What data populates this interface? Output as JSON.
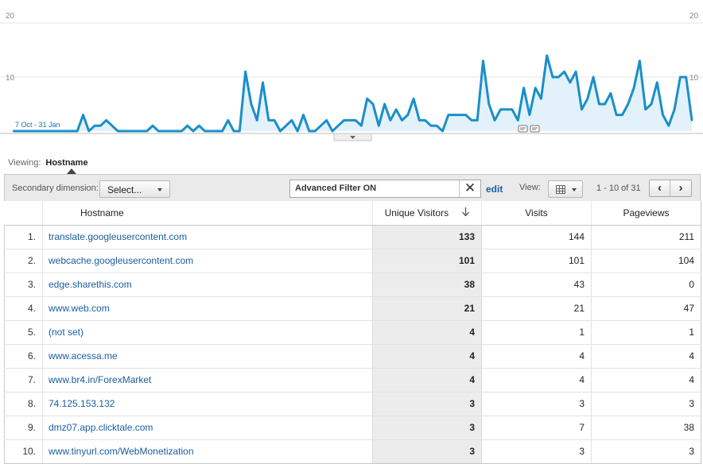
{
  "chart_data": {
    "type": "area",
    "yticks": [
      "20",
      "10"
    ],
    "yticks_right": [
      "20",
      "10"
    ],
    "ylim": [
      0,
      20
    ],
    "date_range_label": "7 Oct - 31 Jan",
    "grid": true,
    "colors": {
      "line": "#1a8fc8",
      "fill": "#e3f1fb",
      "grid": "#e6e6e6"
    },
    "values": [
      0,
      0,
      0,
      0,
      0,
      0,
      0,
      0,
      0,
      0,
      0,
      0,
      3,
      0,
      1,
      1,
      2,
      1,
      0,
      0,
      0,
      0,
      0,
      0,
      1,
      0,
      0,
      0,
      0,
      0,
      1,
      0,
      1,
      0,
      0,
      0,
      0,
      2,
      0,
      0,
      11,
      5,
      2,
      9,
      2,
      2,
      0,
      1,
      2,
      0,
      3,
      0,
      0,
      1,
      2,
      0,
      1,
      2,
      2,
      2,
      1,
      6,
      5,
      1,
      5,
      2,
      4,
      2,
      3,
      6,
      2,
      2,
      1,
      1,
      0,
      3,
      3,
      3,
      3,
      2,
      2,
      13,
      5,
      2,
      4,
      4,
      4,
      2,
      8,
      3,
      8,
      6,
      14,
      10,
      10,
      11,
      9,
      11,
      4,
      6,
      10,
      5,
      5,
      7,
      3,
      3,
      5,
      8,
      13,
      4,
      5,
      9,
      3,
      1,
      4,
      10,
      10,
      2
    ]
  },
  "chart_ui": {
    "annotation_icons": [
      "annotation-icon",
      "annotation-icon"
    ],
    "expand_handle": "chevron-down-icon"
  },
  "viewing": {
    "label": "Viewing:",
    "dimension": "Hostname"
  },
  "toolbar": {
    "secondary_label": "Secondary dimension:",
    "select_label": "Select...",
    "filter_text": "Advanced Filter ON",
    "filter_close": "✕",
    "edit_label": "edit",
    "view_label": "View:",
    "view_icon": "grid-icon",
    "pager_text": "1 - 10 of 31",
    "prev_icon": "‹",
    "next_icon": "›"
  },
  "table": {
    "headers": {
      "hostname": "Hostname",
      "unique_visitors": "Unique Visitors",
      "visits": "Visits",
      "pageviews": "Pageviews"
    },
    "sort_icon": "sort-down-arrow-icon",
    "rows": [
      {
        "idx": "1.",
        "host": "translate.googleusercontent.com",
        "uv": "133",
        "visits": "144",
        "pv": "211"
      },
      {
        "idx": "2.",
        "host": "webcache.googleusercontent.com",
        "uv": "101",
        "visits": "101",
        "pv": "104"
      },
      {
        "idx": "3.",
        "host": "edge.sharethis.com",
        "uv": "38",
        "visits": "43",
        "pv": "0"
      },
      {
        "idx": "4.",
        "host": "www.web.com",
        "uv": "21",
        "visits": "21",
        "pv": "47"
      },
      {
        "idx": "5.",
        "host": "(not set)",
        "uv": "4",
        "visits": "1",
        "pv": "1"
      },
      {
        "idx": "6.",
        "host": "www.acessa.me",
        "uv": "4",
        "visits": "4",
        "pv": "4"
      },
      {
        "idx": "7.",
        "host": "www.br4.in/ForexMarket",
        "uv": "4",
        "visits": "4",
        "pv": "4"
      },
      {
        "idx": "8.",
        "host": "74.125.153.132",
        "uv": "3",
        "visits": "3",
        "pv": "3"
      },
      {
        "idx": "9.",
        "host": "dmz07.app.clicktale.com",
        "uv": "3",
        "visits": "7",
        "pv": "38"
      },
      {
        "idx": "10.",
        "host": "www.tinyurl.com/WebMonetization",
        "uv": "3",
        "visits": "3",
        "pv": "3"
      }
    ]
  }
}
